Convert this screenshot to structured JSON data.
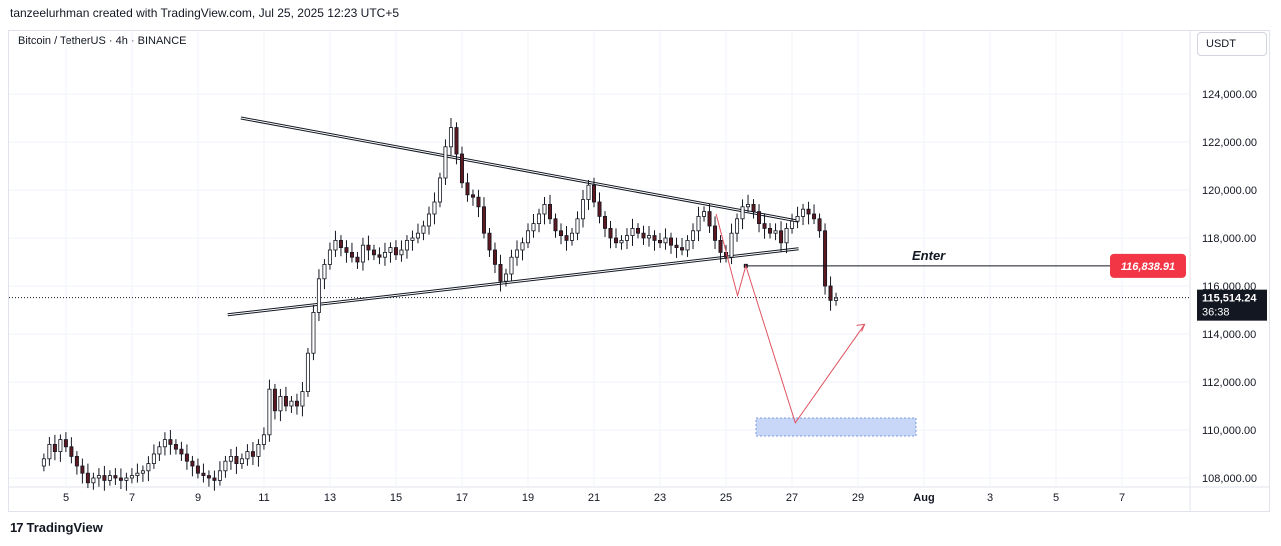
{
  "header": {
    "attribution": "tanzeelurhman created with TradingView.com, Jul 25, 2025 12:23 UTC+5"
  },
  "symbol_info": "Bitcoin / TetherUS · 4h · BINANCE",
  "currency_button": "USDT",
  "footer": {
    "logo_mark": "17",
    "logo_text": "TradingView"
  },
  "colors": {
    "up": "#ffffff",
    "down": "#5d1820",
    "wick": "#131722",
    "grid": "#f0f3fa",
    "projection": "#e05260",
    "target_zone": "#c8d7f7",
    "label_red": "#f23645",
    "price_tag": "#131722"
  },
  "chart_data": {
    "type": "candlestick",
    "title": "",
    "ylim": [
      107000,
      125900
    ],
    "y_ticks": [
      108000,
      110000,
      112000,
      114000,
      116000,
      118000,
      120000,
      122000,
      124000
    ],
    "y_tick_labels": [
      "108,000.00",
      "110,000.00",
      "112,000.00",
      "114,000.00",
      "116,000.00",
      "118,000.00",
      "120,000.00",
      "122,000.00",
      "124,000.00"
    ],
    "x_range_days": [
      3.3,
      8.1
    ],
    "x_ticks": [
      {
        "day": 5,
        "label": "5"
      },
      {
        "day": 7,
        "label": "7"
      },
      {
        "day": 9,
        "label": "9"
      },
      {
        "day": 11,
        "label": "11"
      },
      {
        "day": 13,
        "label": "13"
      },
      {
        "day": 15,
        "label": "15"
      },
      {
        "day": 17,
        "label": "17"
      },
      {
        "day": 19,
        "label": "19"
      },
      {
        "day": 21,
        "label": "21"
      },
      {
        "day": 23,
        "label": "23"
      },
      {
        "day": 25,
        "label": "25"
      },
      {
        "day": 27,
        "label": "27"
      },
      {
        "day": 29,
        "label": "29"
      },
      {
        "day": 31,
        "label": "Aug"
      },
      {
        "day": 33,
        "label": "3"
      },
      {
        "day": 35,
        "label": "5"
      },
      {
        "day": 37,
        "label": "7"
      }
    ],
    "candle_start_day": 4.33,
    "candle_interval_days": 0.1667,
    "candles_close": [
      108800,
      109400,
      109100,
      109600,
      109300,
      108900,
      108500,
      108200,
      107800,
      108000,
      108100,
      107900,
      108100,
      108000,
      107900,
      108000,
      108100,
      108200,
      108300,
      108600,
      109000,
      109300,
      109600,
      109400,
      109200,
      109000,
      108700,
      108500,
      108200,
      108100,
      108000,
      107900,
      108300,
      108700,
      108900,
      108600,
      108800,
      109100,
      108900,
      109400,
      109800,
      111700,
      110800,
      111400,
      111000,
      111200,
      111000,
      111600,
      113200,
      114900,
      116300,
      116900,
      117500,
      117900,
      117600,
      117400,
      117200,
      117000,
      117700,
      117500,
      117300,
      117200,
      117400,
      117600,
      117300,
      117500,
      117900,
      118000,
      118200,
      118500,
      119000,
      119500,
      120500,
      121800,
      122600,
      121500,
      120300,
      119800,
      119700,
      119300,
      118200,
      117500,
      116900,
      116200,
      116500,
      117200,
      117500,
      117800,
      118300,
      118600,
      119000,
      119400,
      118800,
      118300,
      118100,
      117900,
      118200,
      118800,
      119600,
      120200,
      119500,
      118900,
      118400,
      118000,
      117800,
      117900,
      118100,
      118400,
      118200,
      118000,
      118100,
      117900,
      117800,
      118000,
      117700,
      117600,
      117500,
      117900,
      118300,
      118900,
      119100,
      118500,
      117900,
      117400,
      117200,
      118200,
      118800,
      119300,
      119400,
      119100,
      118600,
      118400,
      118200,
      118300,
      117800,
      118400,
      118700,
      118900,
      119200,
      119000,
      118800,
      118300,
      116000,
      115400,
      115500
    ],
    "current_price_label": "115,514.24",
    "countdown_label": "36:38",
    "entry_label": "116,838.91",
    "annotations": [
      {
        "text": "Enter"
      }
    ]
  }
}
